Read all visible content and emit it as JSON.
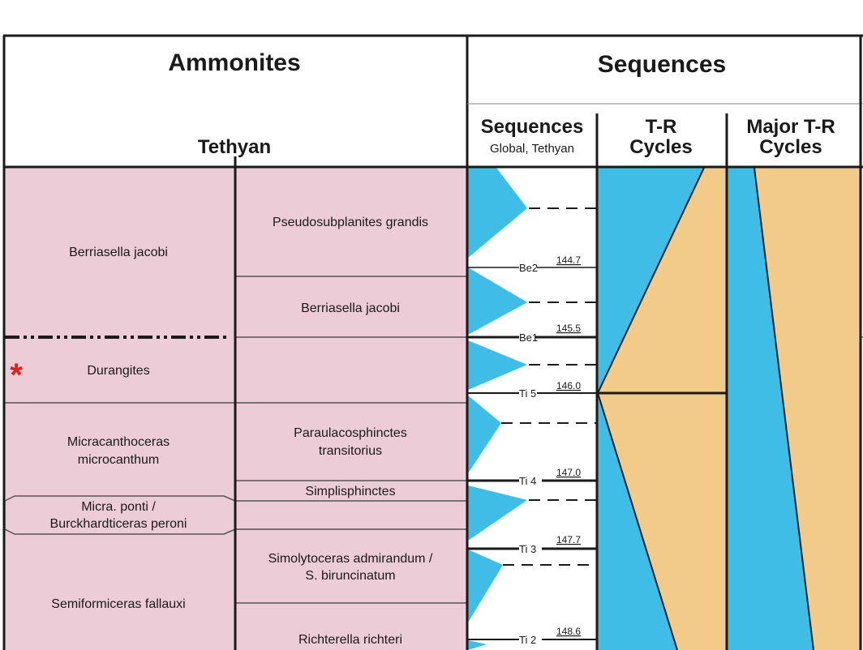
{
  "headers": {
    "ammonites": "Ammonites",
    "sequences_group": "Sequences",
    "tethyan": "Tethyan",
    "sequences_col_line1": "Sequences",
    "sequences_col_line2": "Global, Tethyan",
    "tr_cycles_line1": "T-R",
    "tr_cycles_line2": "Cycles",
    "major_tr_line1": "Major T-R",
    "major_tr_line2": "Cycles"
  },
  "zones": [
    {
      "name": "Berriasella jacobi"
    },
    {
      "name": "Durangites",
      "marker": "*"
    },
    {
      "name_line1": "Micracanthoceras",
      "name_line2": "microcanthum"
    },
    {
      "name_line1": "Micra. ponti /",
      "name_line2": "Burckhardticeras peroni"
    },
    {
      "name": "Semiformiceras fallauxi"
    }
  ],
  "subzones": [
    {
      "name": "Pseudosubplanites grandis"
    },
    {
      "name": "Berriasella jacobi"
    },
    {
      "name": ""
    },
    {
      "name_line1": "Paraulacosphinctes",
      "name_line2": "transitorius"
    },
    {
      "name": "Simplisphinctes"
    },
    {
      "name": ""
    },
    {
      "name_line1": "Simolytoceras admirandum /",
      "name_line2": "S. biruncinatum"
    },
    {
      "name": "Richterella richteri"
    }
  ],
  "boundaries": [
    {
      "label": "Be2",
      "age": "144.7"
    },
    {
      "label": "Be1",
      "age": "145.5"
    },
    {
      "label": "Ti 5",
      "age": "146.0"
    },
    {
      "label": "Ti 4",
      "age": "147.0"
    },
    {
      "label": "Ti 3",
      "age": "147.7"
    },
    {
      "label": "Ti 2",
      "age": "148.6"
    }
  ],
  "colors": {
    "zone_fill": "#ecccd6",
    "sequence_blue": "#3fbde6",
    "regressive_tan": "#f2cb8a",
    "line": "#1a1a1a",
    "marker_red": "#e0201a"
  }
}
